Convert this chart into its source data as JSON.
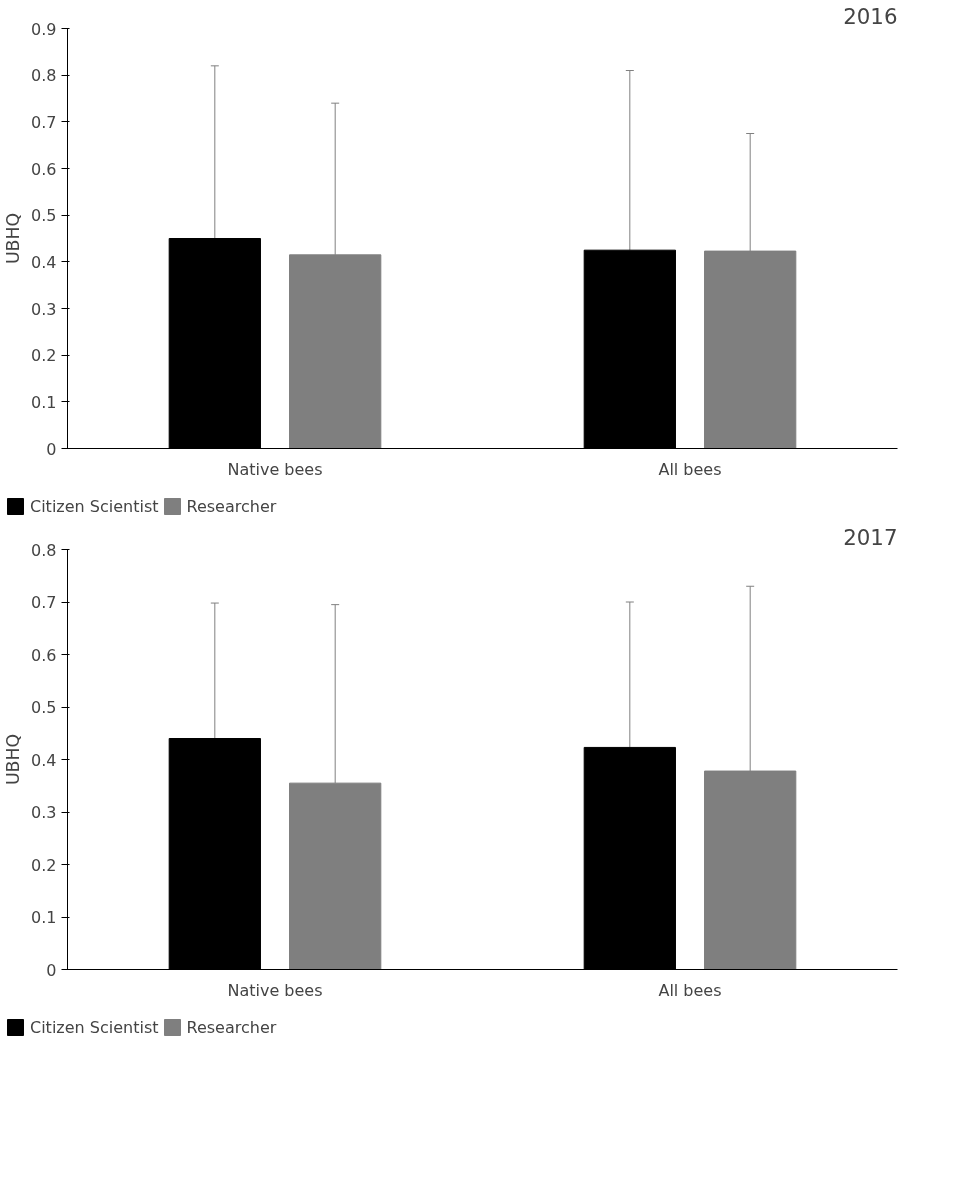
{
  "chart_data": [
    {
      "type": "bar",
      "title": "2016",
      "ylabel": "UBHQ",
      "categories": [
        "Native bees",
        "All bees"
      ],
      "series": [
        {
          "name": "Citizen Scientist",
          "color": "#000000",
          "values": [
            0.45,
            0.425
          ],
          "errors": [
            [
              0.45,
              0.82
            ],
            [
              0.425,
              0.81
            ]
          ]
        },
        {
          "name": "Researcher",
          "color": "#7f7f7f",
          "values": [
            0.415,
            0.423
          ],
          "errors": [
            [
              0.415,
              0.74
            ],
            [
              0.423,
              0.675
            ]
          ]
        }
      ],
      "ylim": [
        0,
        0.9
      ],
      "yticks": [
        0,
        0.1,
        0.2,
        0.3,
        0.4,
        0.5,
        0.6,
        0.7,
        0.8,
        0.9
      ],
      "legend": "bottom"
    },
    {
      "type": "bar",
      "title": "2017",
      "ylabel": "UBHQ",
      "categories": [
        "Native bees",
        "All bees"
      ],
      "series": [
        {
          "name": "Citizen Scientist",
          "color": "#000000",
          "values": [
            0.44,
            0.423
          ],
          "errors": [
            [
              0.44,
              0.698
            ],
            [
              0.423,
              0.7
            ]
          ]
        },
        {
          "name": "Researcher",
          "color": "#7f7f7f",
          "values": [
            0.355,
            0.378
          ],
          "errors": [
            [
              0.355,
              0.695
            ],
            [
              0.378,
              0.73
            ]
          ]
        }
      ],
      "ylim": [
        0,
        0.8
      ],
      "yticks": [
        0,
        0.1,
        0.2,
        0.3,
        0.4,
        0.5,
        0.6,
        0.7,
        0.8
      ],
      "legend": "bottom"
    }
  ]
}
